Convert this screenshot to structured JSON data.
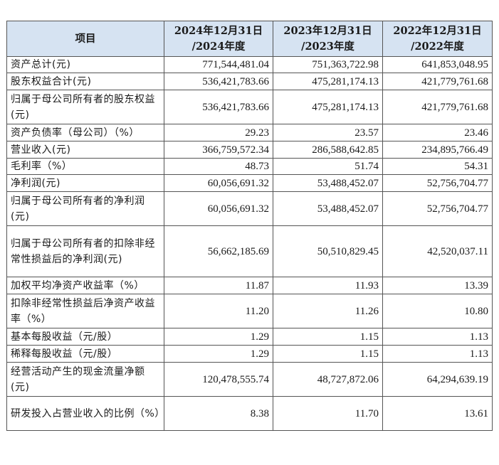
{
  "header": {
    "item": "项目",
    "col1_line1": "2024年12月31日",
    "col1_line2": "/2024年度",
    "col2_line1": "2023年12月31日",
    "col2_line2": "/2023年度",
    "col3_line1": "2022年12月31日",
    "col3_line2": "/2022年度"
  },
  "rows": [
    {
      "label": "资产总计(元)",
      "v2024": "771,544,481.04",
      "v2023": "751,363,722.98",
      "v2022": "641,853,048.95"
    },
    {
      "label": "股东权益合计(元)",
      "v2024": "536,421,783.66",
      "v2023": "475,281,174.13",
      "v2022": "421,779,761.68"
    },
    {
      "label": "归属于母公司所有者的股东权益(元)",
      "v2024": "536,421,783.66",
      "v2023": "475,281,174.13",
      "v2022": "421,779,761.68"
    },
    {
      "label": "资产负债率（母公司）（%）",
      "v2024": "29.23",
      "v2023": "23.57",
      "v2022": "23.46"
    },
    {
      "label": "营业收入(元)",
      "v2024": "366,759,572.34",
      "v2023": "286,588,642.85",
      "v2022": "234,895,766.49"
    },
    {
      "label": "毛利率（%）",
      "v2024": "48.73",
      "v2023": "51.74",
      "v2022": "54.31"
    },
    {
      "label": "净利润(元)",
      "v2024": "60,056,691.32",
      "v2023": "53,488,452.07",
      "v2022": "52,756,704.77"
    },
    {
      "label": "归属于母公司所有者的净利润(元)",
      "v2024": "60,056,691.32",
      "v2023": "53,488,452.07",
      "v2022": "52,756,704.77"
    },
    {
      "label": "归属于母公司所有者的扣除非经常性损益后的净利润(元)",
      "v2024": "56,662,185.69",
      "v2023": "50,510,829.45",
      "v2022": "42,520,037.11"
    },
    {
      "label": "加权平均净资产收益率（%）",
      "v2024": "11.87",
      "v2023": "11.93",
      "v2022": "13.39"
    },
    {
      "label": "扣除非经常性损益后净资产收益率（%）",
      "v2024": "11.20",
      "v2023": "11.26",
      "v2022": "10.80"
    },
    {
      "label": "基本每股收益（元/股）",
      "v2024": "1.29",
      "v2023": "1.15",
      "v2022": "1.13"
    },
    {
      "label": "稀释每股收益（元/股）",
      "v2024": "1.29",
      "v2023": "1.15",
      "v2022": "1.13"
    },
    {
      "label": "经营活动产生的现金流量净额(元)",
      "v2024": "120,478,555.74",
      "v2023": "48,727,872.06",
      "v2022": "64,294,639.19"
    },
    {
      "label": "研发投入占营业收入的比例（%）",
      "v2024": "8.38",
      "v2023": "11.70",
      "v2022": "13.61"
    }
  ]
}
